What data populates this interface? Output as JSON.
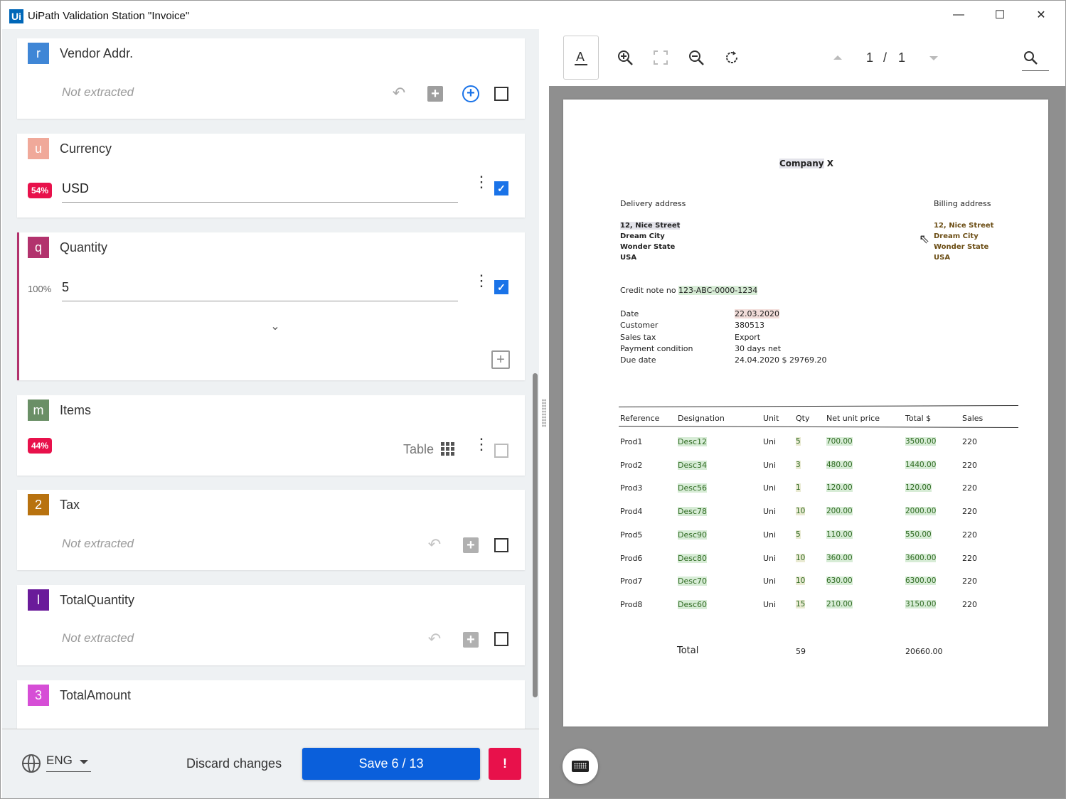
{
  "window": {
    "title": "UiPath Validation Station \"Invoice\"",
    "logo": "Ui",
    "minimize": "—",
    "maximize": "☐",
    "close": "✕"
  },
  "fields": [
    {
      "name": "Vendor Addr.",
      "badge": "r",
      "badge_color": "#3f86d6",
      "status": "Not extracted"
    },
    {
      "name": "Currency",
      "badge": "u",
      "badge_color": "#f0a99a",
      "confidence": "54%",
      "value": "USD"
    },
    {
      "name": "Quantity",
      "badge": "q",
      "badge_color": "#b2326d",
      "confidence": "100%",
      "value": "5"
    },
    {
      "name": "Items",
      "badge": "m",
      "badge_color": "#6a8f66",
      "confidence": "44%",
      "table_label": "Table"
    },
    {
      "name": "Tax",
      "badge": "2",
      "badge_color": "#b8720f",
      "status": "Not extracted"
    },
    {
      "name": "TotalQuantity",
      "badge": "l",
      "badge_color": "#6a1b9a",
      "status": "Not extracted"
    },
    {
      "name": "TotalAmount",
      "badge": "3",
      "badge_color": "#d64ed6"
    }
  ],
  "footer": {
    "language": "ENG",
    "discard": "Discard changes",
    "save": "Save 6 / 13",
    "alert": "!"
  },
  "viewer": {
    "page_current": "1",
    "page_sep": "/",
    "page_total": "1"
  },
  "document": {
    "company": "Company",
    "company_x": "X",
    "delivery_label": "Delivery address",
    "billing_label": "Billing address",
    "delivery_lines": [
      "12, Nice Street",
      "Dream City",
      "Wonder State",
      "USA"
    ],
    "billing_lines": [
      "12, Nice Street",
      "Dream City",
      "Wonder State",
      "USA"
    ],
    "credit_label": "Credit note no",
    "credit_value": "123-ABC-0000-1234",
    "meta": [
      {
        "label": "Date",
        "value": "22.03.2020"
      },
      {
        "label": "Customer",
        "value": "380513"
      },
      {
        "label": "Sales tax",
        "value": "Export"
      },
      {
        "label": "Payment condition",
        "value": "30 days net"
      },
      {
        "label": "Due date",
        "value": "24.04.2020 $ 29769.20"
      }
    ],
    "columns": [
      "Reference",
      "Designation",
      "Unit",
      "Qty",
      "Net unit price",
      "Total $",
      "Sales"
    ],
    "rows": [
      [
        "Prod1",
        "Desc12",
        "Uni",
        "5",
        "700.00",
        "3500.00",
        "220"
      ],
      [
        "Prod2",
        "Desc34",
        "Uni",
        "3",
        "480.00",
        "1440.00",
        "220"
      ],
      [
        "Prod3",
        "Desc56",
        "Uni",
        "1",
        "120.00",
        "120.00",
        "220"
      ],
      [
        "Prod4",
        "Desc78",
        "Uni",
        "10",
        "200.00",
        "2000.00",
        "220"
      ],
      [
        "Prod5",
        "Desc90",
        "Uni",
        "5",
        "110.00",
        "550.00",
        "220"
      ],
      [
        "Prod6",
        "Desc80",
        "Uni",
        "10",
        "360.00",
        "3600.00",
        "220"
      ],
      [
        "Prod7",
        "Desc70",
        "Uni",
        "10",
        "630.00",
        "6300.00",
        "220"
      ],
      [
        "Prod8",
        "Desc60",
        "Uni",
        "15",
        "210.00",
        "3150.00",
        "220"
      ]
    ],
    "total_label": "Total",
    "total_qty": "59",
    "total_amount": "20660.00"
  }
}
